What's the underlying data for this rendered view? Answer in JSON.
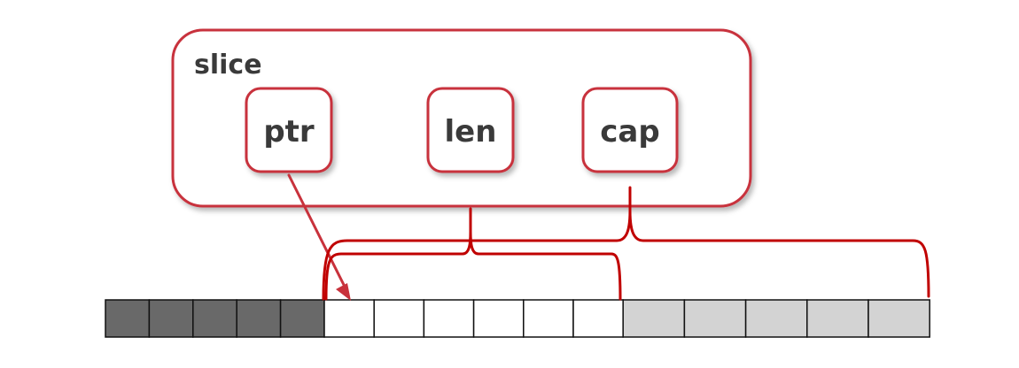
{
  "colors": {
    "accent": "#c8323c",
    "brace": "#c00000",
    "text": "#3a3a3a",
    "cell_dark": "#696969",
    "cell_white": "#ffffff",
    "cell_light": "#d3d3d3",
    "cell_border": "#111111"
  },
  "slice": {
    "label": "slice",
    "fields": [
      {
        "id": "ptr",
        "label": "ptr"
      },
      {
        "id": "len",
        "label": "len"
      },
      {
        "id": "cap",
        "label": "cap"
      }
    ]
  },
  "array": {
    "cells": [
      {
        "kind": "dark"
      },
      {
        "kind": "dark"
      },
      {
        "kind": "dark"
      },
      {
        "kind": "dark"
      },
      {
        "kind": "dark"
      },
      {
        "kind": "white"
      },
      {
        "kind": "white"
      },
      {
        "kind": "white"
      },
      {
        "kind": "white"
      },
      {
        "kind": "white"
      },
      {
        "kind": "white"
      },
      {
        "kind": "light"
      },
      {
        "kind": "light"
      },
      {
        "kind": "light"
      },
      {
        "kind": "light"
      },
      {
        "kind": "light"
      }
    ]
  }
}
